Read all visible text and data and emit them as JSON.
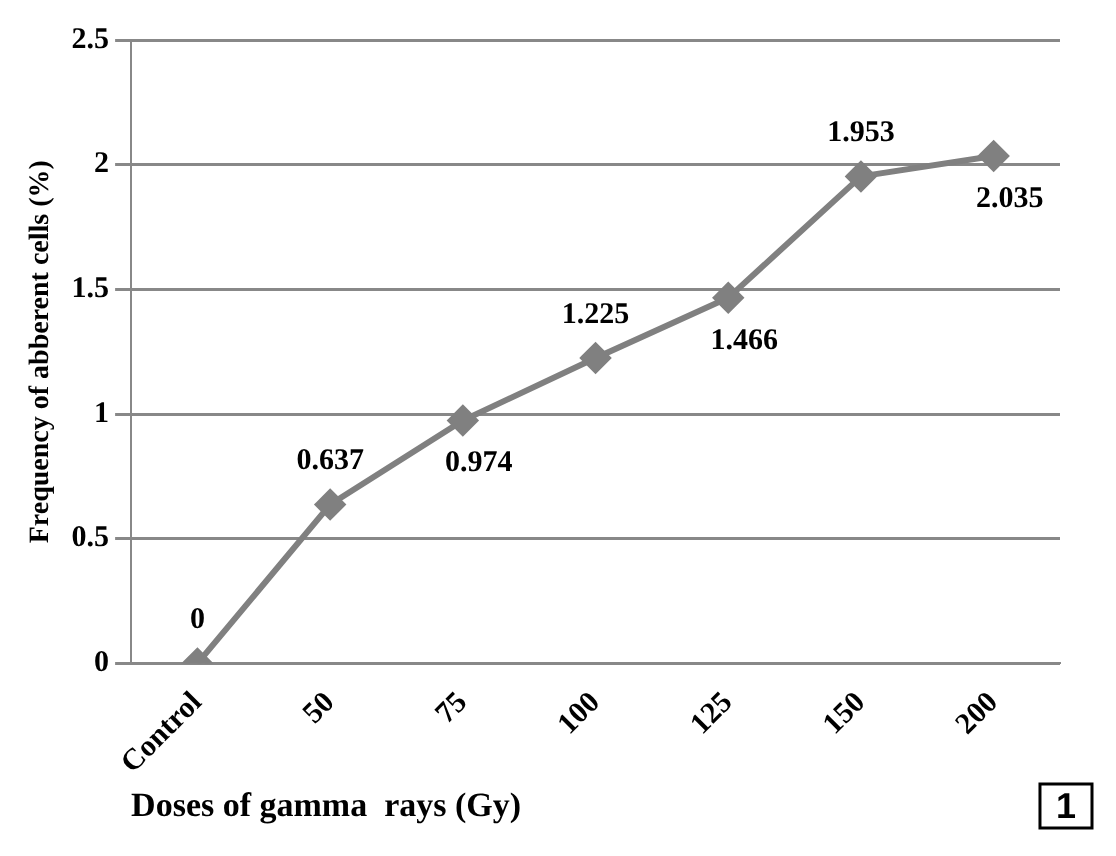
{
  "chart_data": {
    "type": "line",
    "xlabel": "Doses of gamma  rays (Gy)",
    "ylabel": "Frequency of abberent cells (%)",
    "categories": [
      "Control",
      "50",
      "75",
      "100",
      "125",
      "150",
      "200"
    ],
    "values": [
      0,
      0.637,
      0.974,
      1.225,
      1.466,
      1.953,
      2.035
    ],
    "color": "#808080",
    "marker": "diamond",
    "line_style": "solid",
    "grid": "y",
    "data_labels": true,
    "ylim": [
      0,
      2.5
    ],
    "yticks": [
      0,
      0.5,
      1,
      1.5,
      2,
      2.5
    ],
    "annotations": [
      "1"
    ]
  }
}
